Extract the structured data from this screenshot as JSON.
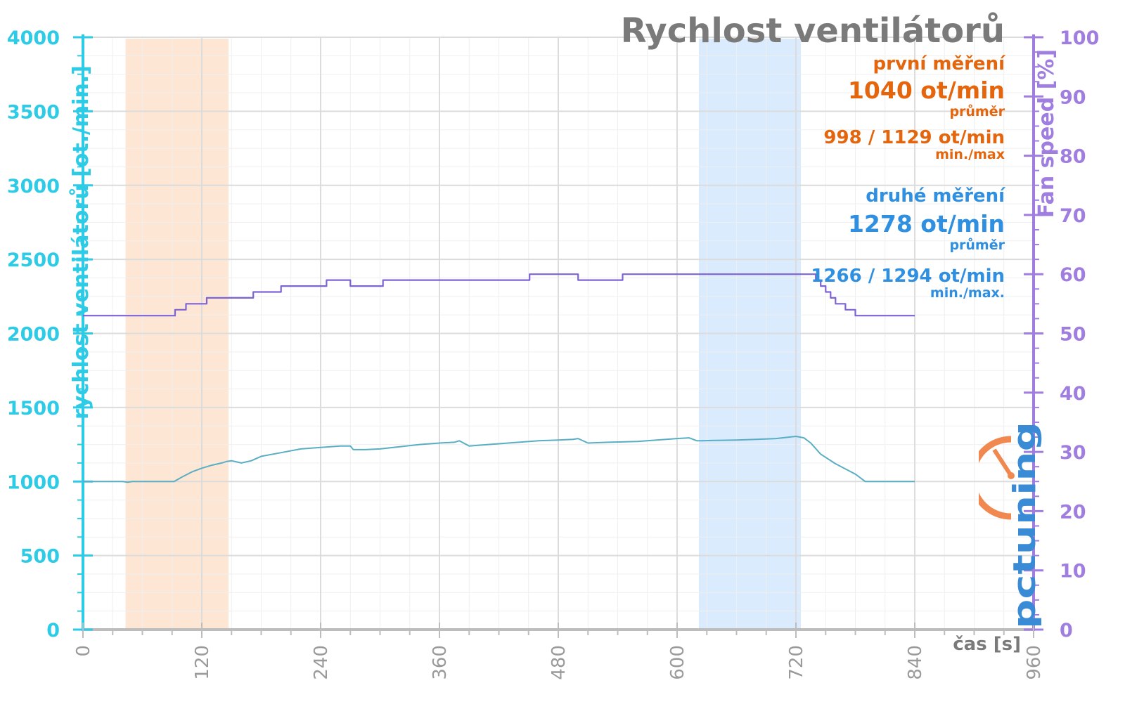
{
  "colors": {
    "rpm_axis": "#2ecbe6",
    "pct_axis": "#a07ee0",
    "rpm_line": "#5aaec4",
    "pct_line": "#7e63d6",
    "first_band": "#fde3cd",
    "second_band": "#d2e8fd",
    "first_text": "#e4650c",
    "second_text": "#2f8fe0",
    "title_text": "#7a7a7a"
  },
  "annotations": {
    "first_label": "první měření",
    "first_avg": "1040 ot/min",
    "first_avg_caption": "průměr",
    "first_minmax": "998 / 1129 ot/min",
    "first_minmax_caption": "min./max",
    "second_label": "druhé měření",
    "second_avg": "1278 ot/min",
    "second_avg_caption": "průměr",
    "second_minmax": "1266 / 1294 ot/min",
    "second_minmax_caption": "min./max."
  },
  "logo": {
    "icon": "pctuning-logo",
    "text": "pctuning"
  },
  "chart_data": {
    "type": "line",
    "title": "Rychlost ventilátorů",
    "xlabel": "čas [s]",
    "ylabel_left": "rychlost ventilátorů [ot./min.]",
    "ylabel_right": "Fan speed [%]",
    "xlim": [
      0,
      960
    ],
    "ylim_left": [
      0,
      4000
    ],
    "ylim_right": [
      0,
      100
    ],
    "x_ticks": [
      0,
      120,
      240,
      360,
      480,
      600,
      720,
      840,
      960
    ],
    "y_left_ticks": [
      0,
      500,
      1000,
      1500,
      2000,
      2500,
      3000,
      3500,
      4000
    ],
    "y_right_ticks": [
      0,
      10,
      20,
      30,
      40,
      50,
      60,
      70,
      80,
      90,
      100
    ],
    "grid": true,
    "bands": [
      {
        "name": "první měření",
        "x": [
          43,
          147
        ]
      },
      {
        "name": "druhé měření",
        "x": [
          622,
          725
        ]
      }
    ],
    "series": [
      {
        "axis": "left",
        "x": [
          0,
          40,
          45,
          50,
          92,
          100,
          110,
          120,
          130,
          140,
          145,
          150,
          160,
          170,
          180,
          200,
          220,
          240,
          260,
          270,
          273,
          285,
          300,
          320,
          340,
          360,
          375,
          380,
          390,
          400,
          420,
          440,
          460,
          480,
          495,
          500,
          510,
          530,
          560,
          600,
          612,
          620,
          625,
          640,
          660,
          680,
          700,
          720,
          728,
          735,
          745,
          760,
          780,
          790,
          800,
          820,
          840
        ],
        "values": [
          1000,
          1000,
          995,
          1000,
          1000,
          1030,
          1065,
          1090,
          1110,
          1125,
          1135,
          1140,
          1125,
          1140,
          1170,
          1195,
          1220,
          1230,
          1240,
          1240,
          1215,
          1215,
          1220,
          1235,
          1250,
          1260,
          1265,
          1275,
          1240,
          1245,
          1255,
          1265,
          1275,
          1280,
          1285,
          1290,
          1260,
          1265,
          1270,
          1290,
          1295,
          1275,
          1275,
          1278,
          1280,
          1285,
          1290,
          1305,
          1295,
          1260,
          1185,
          1120,
          1050,
          1000,
          1000,
          1000,
          1000
        ]
      },
      {
        "axis": "right",
        "x": [
          0,
          93,
          93,
          104,
          104,
          125,
          125,
          172,
          172,
          200,
          200,
          246,
          246,
          270,
          270,
          303,
          303,
          451,
          451,
          500,
          500,
          545,
          545,
          740,
          740,
          745,
          745,
          750,
          750,
          755,
          755,
          760,
          760,
          770,
          770,
          780,
          780,
          792,
          792,
          840
        ],
        "values": [
          53,
          53,
          54,
          54,
          55,
          55,
          56,
          56,
          57,
          57,
          58,
          58,
          59,
          59,
          58,
          58,
          59,
          59,
          60,
          60,
          59,
          59,
          60,
          60,
          59,
          59,
          58,
          58,
          57,
          57,
          56,
          56,
          55,
          55,
          54,
          54,
          53,
          53,
          53,
          53
        ]
      }
    ]
  }
}
